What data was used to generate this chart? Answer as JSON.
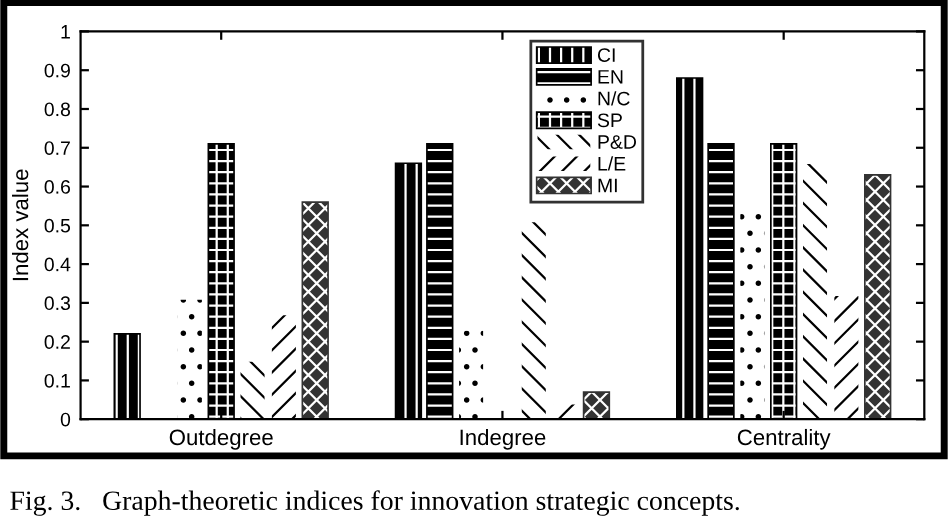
{
  "chart_data": {
    "type": "bar",
    "categories": [
      "Outdegree",
      "Indegree",
      "Centrality"
    ],
    "ylabel": "Index value",
    "ylim": [
      0,
      1
    ],
    "yticks": [
      0,
      0.1,
      0.2,
      0.3,
      0.4,
      0.5,
      0.6,
      0.7,
      0.8,
      0.9,
      1
    ],
    "grid": false,
    "legend": "top",
    "annotations": [
      "Fig. 3.   Graph-theoretic indices for innovation strategic concepts."
    ],
    "series": [
      {
        "name": "CI",
        "color": "#000000",
        "values": [
          0.22,
          0.66,
          0.88
        ]
      },
      {
        "name": "EN",
        "color": "#000000",
        "values": [
          0,
          0.71,
          0.71
        ]
      },
      {
        "name": "N/C",
        "color": "#ffffff",
        "values": [
          0.31,
          0.23,
          0.54
        ]
      },
      {
        "name": "SP",
        "color": "#000000",
        "values": [
          0.71,
          0,
          0.71
        ]
      },
      {
        "name": "P&D",
        "color": "#ffffff",
        "values": [
          0.15,
          0.51,
          0.66
        ]
      },
      {
        "name": "L/E",
        "color": "#ffffff",
        "values": [
          0.27,
          0.04,
          0.32
        ]
      },
      {
        "name": "MI",
        "color": "#333333",
        "values": [
          0.56,
          0.07,
          0.63
        ]
      }
    ]
  }
}
